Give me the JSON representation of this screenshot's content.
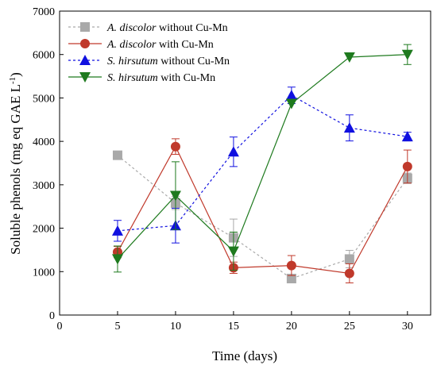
{
  "chart_data": {
    "type": "line",
    "title": "",
    "xlabel": "Time (days)",
    "ylabel": {
      "main": "Soluble phenols (mg eq GAE L",
      "sup": "-1",
      "close": ")"
    },
    "xlim": [
      0,
      32
    ],
    "ylim": [
      0,
      7000
    ],
    "xticks": [
      0,
      5,
      10,
      15,
      20,
      25,
      30
    ],
    "yticks": [
      0,
      1000,
      2000,
      3000,
      4000,
      5000,
      6000,
      7000
    ],
    "grid": false,
    "legend_position": "top-left",
    "x": [
      5,
      10,
      15,
      20,
      25,
      30
    ],
    "series": [
      {
        "name": {
          "species": "A. discolor",
          "rest": " without Cu-Mn"
        },
        "values": [
          3680,
          2580,
          1780,
          840,
          1290,
          3150
        ],
        "errors": [
          0,
          150,
          430,
          80,
          200,
          120
        ],
        "color": "#a9a9a9",
        "marker": "square",
        "dashed": true
      },
      {
        "name": {
          "species": "A. discolor",
          "rest": " with Cu-Mn"
        },
        "values": [
          1450,
          3880,
          1090,
          1140,
          960,
          3420
        ],
        "errors": [
          130,
          180,
          130,
          230,
          220,
          380
        ],
        "color": "#c0392b",
        "marker": "circle",
        "dashed": false
      },
      {
        "name": {
          "species": "S. hirsutum",
          "rest": " without Cu-Mn"
        },
        "values": [
          1940,
          2060,
          3760,
          5060,
          4310,
          4110
        ],
        "errors": [
          240,
          400,
          340,
          190,
          300,
          100
        ],
        "color": "#1010e0",
        "marker": "triangle-up",
        "dashed": true
      },
      {
        "name": {
          "species": "S. hirsutum",
          "rest": " with Cu-Mn"
        },
        "values": [
          1290,
          2750,
          1470,
          4870,
          5940,
          6000
        ],
        "errors": [
          300,
          780,
          440,
          0,
          0,
          230
        ],
        "color": "#1e7a1e",
        "marker": "triangle-down",
        "dashed": false
      }
    ]
  }
}
